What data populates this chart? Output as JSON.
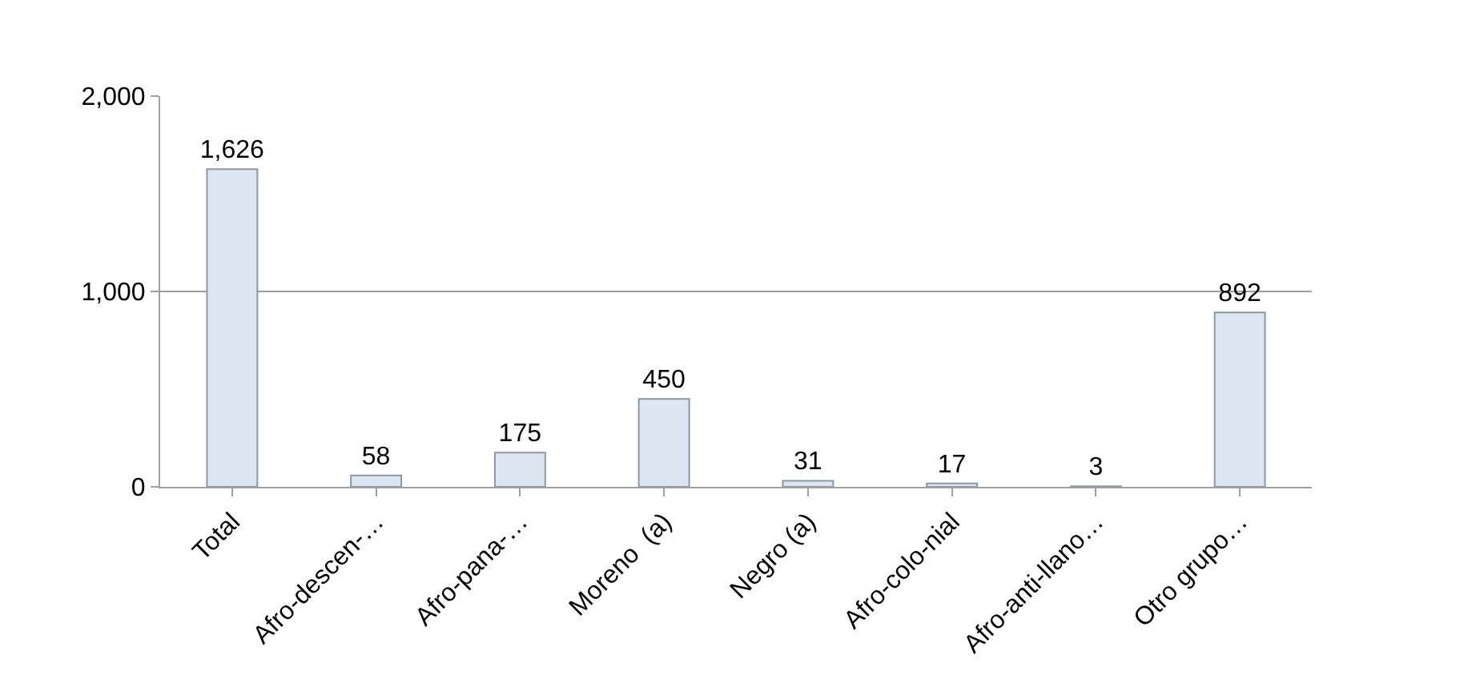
{
  "chart_data": {
    "type": "bar",
    "categories": [
      "Total",
      "Afro-descen-…",
      "Afro-pana-…",
      "Moreno  (a)",
      "Negro (a)",
      "Afro-colo-nial",
      "Afro-anti-llano…",
      "Otro grupo…"
    ],
    "values": [
      1626,
      58,
      175,
      450,
      31,
      17,
      3,
      892
    ],
    "color": "#dce6f2",
    "ylim": [
      0,
      2000
    ],
    "yticks": [
      {
        "value": 0,
        "label": "0"
      },
      {
        "value": 1000,
        "label": "1,000"
      },
      {
        "value": 2000,
        "label": "2,000"
      }
    ],
    "grid": "y",
    "value_labels": [
      "1,626",
      "58",
      "175",
      "450",
      "31",
      "17",
      "3",
      "892"
    ]
  }
}
